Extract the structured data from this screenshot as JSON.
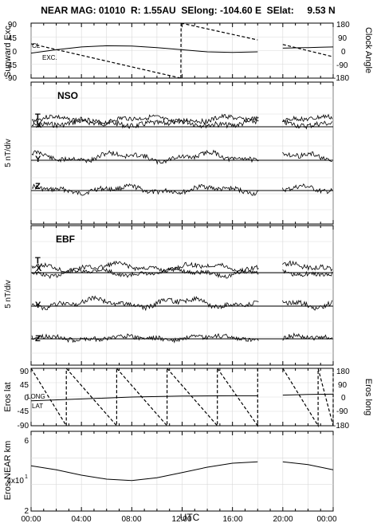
{
  "header": {
    "title": "NEAR MAG: 01010  R: 1.55AU  SElong: -104.60 E  SElat:     9.53 N"
  },
  "chart_data": [
    {
      "type": "line",
      "panel": "sunward",
      "ylabel": "Sunward Exc.",
      "y2label": "Clock Angle",
      "yticks": [
        "90",
        "45",
        "0",
        "-45",
        "-90"
      ],
      "yticks_right": [
        "180",
        "90",
        "0",
        "-90",
        "-180"
      ],
      "ylim": [
        -90,
        90
      ],
      "y2lim": [
        -180,
        180
      ],
      "trace_labels": [
        "CL",
        "EXC."
      ],
      "series": [
        {
          "style": "solid",
          "axis": "left",
          "x": [
            0,
            2,
            4,
            6,
            8,
            10,
            12,
            14,
            16,
            18
          ],
          "y": [
            -8,
            3,
            12,
            16,
            15,
            10,
            3,
            -4,
            -6,
            -4
          ],
          "x2": [
            20,
            21,
            22,
            23,
            24
          ],
          "y2": [
            8,
            9,
            10,
            11,
            12
          ]
        },
        {
          "style": "dashed",
          "axis": "right",
          "segments": [
            {
              "x": [
                0,
                11.9
              ],
              "y": [
                45,
                -180
              ]
            },
            {
              "x": [
                11.9,
                11.92
              ],
              "y": [
                -180,
                180
              ]
            },
            {
              "x": [
                11.92,
                18.0
              ],
              "y": [
                180,
                70
              ]
            },
            {
              "x": [
                20.0,
                24.0
              ],
              "y": [
                40,
                -40
              ]
            }
          ]
        }
      ]
    },
    {
      "type": "line",
      "panel": "NSO",
      "label": "NSO",
      "ylabel": "5 nT/div",
      "trace_labels": [
        "T",
        "X",
        "Y",
        "Z"
      ],
      "series": [
        {
          "name": "T",
          "offset_div": 0
        },
        {
          "name": "X",
          "offset_div": 0
        },
        {
          "name": "Y",
          "offset_div": 0
        },
        {
          "name": "Z",
          "offset_div": 0
        }
      ]
    },
    {
      "type": "line",
      "panel": "EBF",
      "label": "EBF",
      "ylabel": "5 nT/div",
      "trace_labels": [
        "T",
        "X",
        "Y",
        "Z"
      ],
      "series": [
        {
          "name": "T",
          "offset_div": 0
        },
        {
          "name": "X",
          "offset_div": 0
        },
        {
          "name": "Y",
          "offset_div": 0
        },
        {
          "name": "Z",
          "offset_div": 0
        }
      ]
    },
    {
      "type": "line",
      "panel": "eros",
      "ylabel": "Eros lat",
      "y2label": "Eros long",
      "yticks": [
        "90",
        "45",
        "0",
        "-45",
        "-90"
      ],
      "yticks_right": [
        "180",
        "90",
        "0",
        "-90",
        "-180"
      ],
      "ylim": [
        -90,
        90
      ],
      "y2lim": [
        -180,
        180
      ],
      "trace_labels": [
        "LONG",
        "LAT"
      ],
      "series": [
        {
          "style": "solid",
          "axis": "left",
          "x": [
            0,
            4,
            8,
            12,
            16,
            18
          ],
          "y": [
            -12,
            -6,
            0,
            3,
            4,
            4
          ],
          "x2": [
            20,
            22,
            24
          ],
          "y2": [
            6,
            8,
            9
          ]
        },
        {
          "style": "dashed",
          "axis": "right",
          "sawtooth": [
            {
              "x0": 0.0,
              "x1": 2.8
            },
            {
              "x0": 2.8,
              "x1": 6.8
            },
            {
              "x0": 6.8,
              "x1": 10.8
            },
            {
              "x0": 10.8,
              "x1": 14.8
            },
            {
              "x0": 14.8,
              "x1": 18.0
            },
            {
              "x0": 20.0,
              "x1": 22.8
            },
            {
              "x0": 22.8,
              "x1": 24.0
            }
          ]
        }
      ]
    },
    {
      "type": "line",
      "panel": "distance",
      "ylabel": "Eros-NEAR km",
      "yticks": [
        "6",
        "4x10",
        "2"
      ],
      "ytick_exponent": "1",
      "series": [
        {
          "style": "solid",
          "x": [
            0,
            2,
            4,
            6,
            8,
            10,
            12,
            14,
            16,
            18
          ],
          "y": [
            34,
            31,
            27,
            24,
            23,
            25,
            29,
            33,
            36,
            37
          ],
          "x2": [
            20,
            22,
            24
          ],
          "y2": [
            37,
            35,
            31
          ]
        }
      ],
      "xticks": [
        "00:00",
        "04:00",
        "08:00",
        "12:00",
        "16:00",
        "20:00",
        "00:00"
      ],
      "xlabel": "UTC"
    }
  ]
}
